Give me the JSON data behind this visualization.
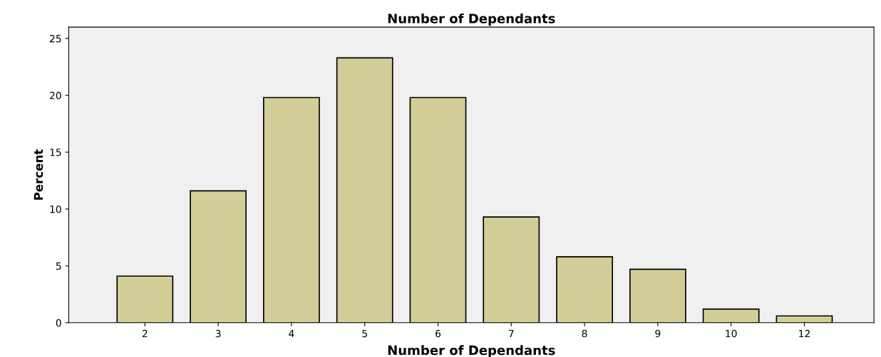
{
  "chart_data": {
    "type": "bar",
    "title": "Number of Dependants",
    "xlabel": "Number of Dependants",
    "ylabel": "Percent",
    "categories": [
      "2",
      "3",
      "4",
      "5",
      "6",
      "7",
      "8",
      "9",
      "10",
      "12"
    ],
    "values": [
      4.1,
      11.6,
      19.8,
      23.3,
      19.8,
      9.3,
      5.8,
      4.7,
      1.2,
      0.6
    ],
    "color": "#d3ce97",
    "ylim": [
      0,
      26
    ],
    "yticks": [
      0,
      5,
      10,
      15,
      20,
      25
    ],
    "grid": false,
    "legend": false
  }
}
